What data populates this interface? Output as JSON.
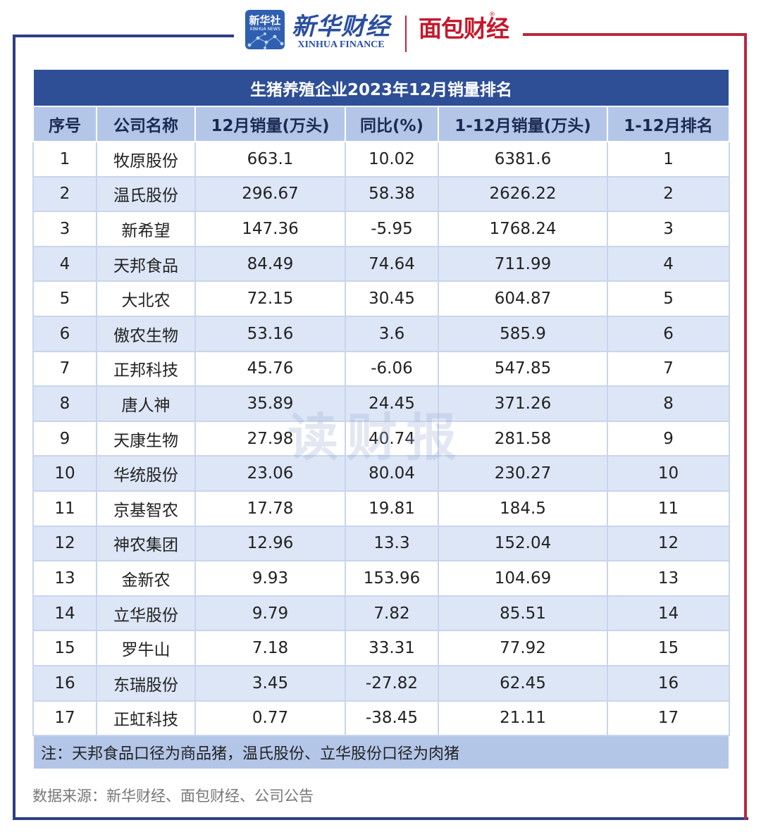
{
  "header": {
    "xinhua_badge_text": "新华社",
    "xinhua_badge_sub": "XINHUA NEWS",
    "xinhua_finance_cn": "新华财经",
    "xinhua_finance_en": "XINHUA FINANCE",
    "mianbao_logo": "面包财经",
    "mianbao_reg": "®"
  },
  "table": {
    "title": "生猪养殖企业2023年12月销量排名",
    "columns": [
      "序号",
      "公司名称",
      "12月销量(万头)",
      "同比(%)",
      "1-12月销量(万头)",
      "1-12月排名"
    ],
    "rows": [
      [
        "1",
        "牧原股份",
        "663.1",
        "10.02",
        "6381.6",
        "1"
      ],
      [
        "2",
        "温氏股份",
        "296.67",
        "58.38",
        "2626.22",
        "2"
      ],
      [
        "3",
        "新希望",
        "147.36",
        "-5.95",
        "1768.24",
        "3"
      ],
      [
        "4",
        "天邦食品",
        "84.49",
        "74.64",
        "711.99",
        "4"
      ],
      [
        "5",
        "大北农",
        "72.15",
        "30.45",
        "604.87",
        "5"
      ],
      [
        "6",
        "傲农生物",
        "53.16",
        "3.6",
        "585.9",
        "6"
      ],
      [
        "7",
        "正邦科技",
        "45.76",
        "-6.06",
        "547.85",
        "7"
      ],
      [
        "8",
        "唐人神",
        "35.89",
        "24.45",
        "371.26",
        "8"
      ],
      [
        "9",
        "天康生物",
        "27.98",
        "40.74",
        "281.58",
        "9"
      ],
      [
        "10",
        "华统股份",
        "23.06",
        "80.04",
        "230.27",
        "10"
      ],
      [
        "11",
        "京基智农",
        "17.78",
        "19.81",
        "184.5",
        "11"
      ],
      [
        "12",
        "神农集团",
        "12.96",
        "13.3",
        "152.04",
        "12"
      ],
      [
        "13",
        "金新农",
        "9.93",
        "153.96",
        "104.69",
        "13"
      ],
      [
        "14",
        "立华股份",
        "9.79",
        "7.82",
        "85.51",
        "14"
      ],
      [
        "15",
        "罗牛山",
        "7.18",
        "33.31",
        "77.92",
        "15"
      ],
      [
        "16",
        "东瑞股份",
        "3.45",
        "-27.82",
        "62.45",
        "16"
      ],
      [
        "17",
        "正虹科技",
        "0.77",
        "-38.45",
        "21.11",
        "17"
      ]
    ],
    "note": "注：天邦食品口径为商品猪，温氏股份、立华股份口径为肉猪"
  },
  "watermark": "读财报",
  "source": "数据来源：新华财经、面包财经、公司公告",
  "colors": {
    "frame_blue": "#2c3f86",
    "frame_red": "#b8283d",
    "title_bg": "#2e4f96",
    "header_bg": "#b4c6e8",
    "row_alt_bg": "#dde6f6"
  }
}
